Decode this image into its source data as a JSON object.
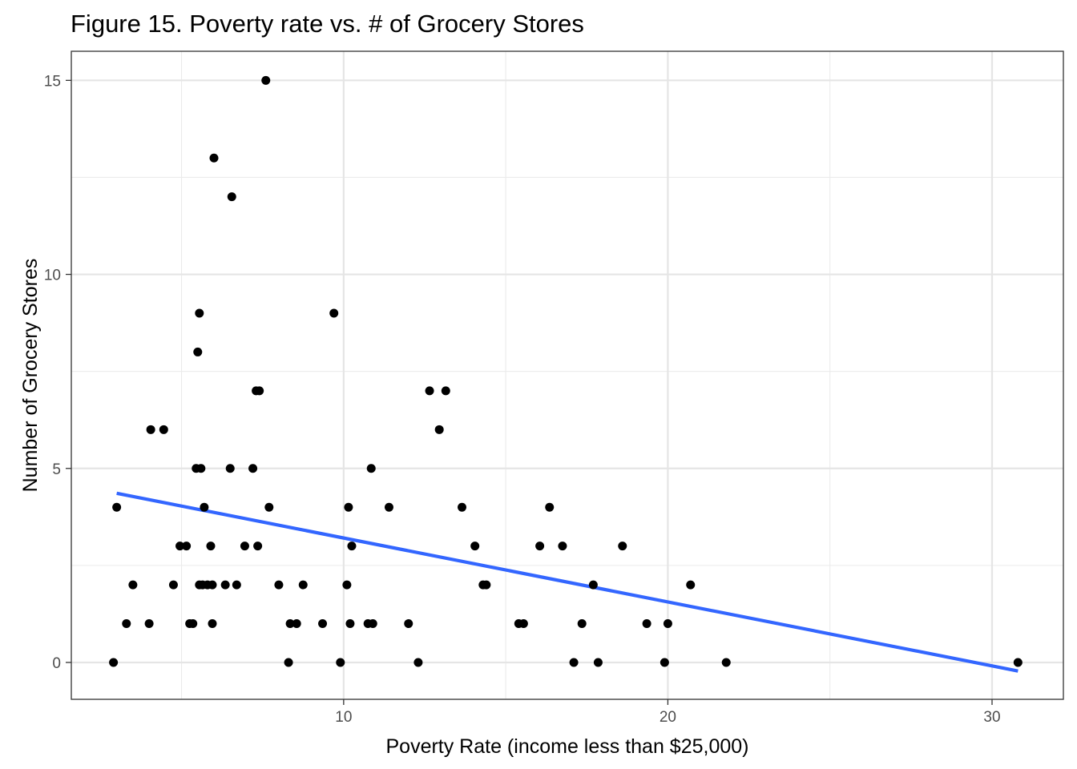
{
  "chart_data": {
    "type": "scatter",
    "title": "Figure 15. Poverty rate vs. # of Grocery Stores",
    "xlabel": "Poverty Rate (income less than $25,000)",
    "ylabel": "Number of Grocery Stores",
    "xlim": [
      1.6,
      32.2
    ],
    "ylim": [
      -0.95,
      15.75
    ],
    "x_major_ticks": [
      10,
      20,
      30
    ],
    "x_minor_ticks": [
      5,
      15,
      25
    ],
    "y_major_ticks": [
      0,
      5,
      10,
      15
    ],
    "y_minor_ticks": [
      2.5,
      7.5,
      12.5
    ],
    "x_tick_labels": [
      "10",
      "20",
      "30"
    ],
    "y_tick_labels": [
      "0",
      "5",
      "10",
      "15"
    ],
    "grid": true,
    "trend_line": {
      "color": "#3366FF",
      "x": [
        3.0,
        30.8
      ],
      "y": [
        4.36,
        -0.22
      ]
    },
    "point_color": "#000000",
    "points": [
      {
        "x": 2.9,
        "y": 0
      },
      {
        "x": 3.0,
        "y": 4
      },
      {
        "x": 3.3,
        "y": 1
      },
      {
        "x": 3.5,
        "y": 2
      },
      {
        "x": 4.0,
        "y": 1
      },
      {
        "x": 4.05,
        "y": 6
      },
      {
        "x": 4.45,
        "y": 6
      },
      {
        "x": 4.75,
        "y": 2
      },
      {
        "x": 4.95,
        "y": 3
      },
      {
        "x": 5.15,
        "y": 3
      },
      {
        "x": 5.25,
        "y": 1
      },
      {
        "x": 5.35,
        "y": 1
      },
      {
        "x": 5.45,
        "y": 5
      },
      {
        "x": 5.55,
        "y": 2
      },
      {
        "x": 5.6,
        "y": 5
      },
      {
        "x": 5.5,
        "y": 8
      },
      {
        "x": 5.55,
        "y": 9
      },
      {
        "x": 5.65,
        "y": 2
      },
      {
        "x": 5.7,
        "y": 4
      },
      {
        "x": 5.8,
        "y": 2
      },
      {
        "x": 5.9,
        "y": 3
      },
      {
        "x": 5.95,
        "y": 1
      },
      {
        "x": 5.95,
        "y": 2
      },
      {
        "x": 6.0,
        "y": 13
      },
      {
        "x": 6.35,
        "y": 2
      },
      {
        "x": 6.5,
        "y": 5
      },
      {
        "x": 6.55,
        "y": 12
      },
      {
        "x": 6.7,
        "y": 2
      },
      {
        "x": 6.95,
        "y": 3
      },
      {
        "x": 7.2,
        "y": 5
      },
      {
        "x": 7.3,
        "y": 7
      },
      {
        "x": 7.35,
        "y": 3
      },
      {
        "x": 7.4,
        "y": 7
      },
      {
        "x": 7.6,
        "y": 15
      },
      {
        "x": 7.7,
        "y": 4
      },
      {
        "x": 8.0,
        "y": 2
      },
      {
        "x": 8.3,
        "y": 0
      },
      {
        "x": 8.35,
        "y": 1
      },
      {
        "x": 8.55,
        "y": 1
      },
      {
        "x": 8.75,
        "y": 2
      },
      {
        "x": 9.35,
        "y": 1
      },
      {
        "x": 9.7,
        "y": 9
      },
      {
        "x": 9.9,
        "y": 0
      },
      {
        "x": 10.1,
        "y": 2
      },
      {
        "x": 10.15,
        "y": 4
      },
      {
        "x": 10.2,
        "y": 1
      },
      {
        "x": 10.25,
        "y": 3
      },
      {
        "x": 10.75,
        "y": 1
      },
      {
        "x": 10.85,
        "y": 5
      },
      {
        "x": 10.9,
        "y": 1
      },
      {
        "x": 11.4,
        "y": 4
      },
      {
        "x": 12.0,
        "y": 1
      },
      {
        "x": 12.3,
        "y": 0
      },
      {
        "x": 12.65,
        "y": 7
      },
      {
        "x": 12.95,
        "y": 6
      },
      {
        "x": 13.15,
        "y": 7
      },
      {
        "x": 13.65,
        "y": 4
      },
      {
        "x": 14.05,
        "y": 3
      },
      {
        "x": 14.3,
        "y": 2
      },
      {
        "x": 14.4,
        "y": 2
      },
      {
        "x": 15.4,
        "y": 1
      },
      {
        "x": 15.55,
        "y": 1
      },
      {
        "x": 16.05,
        "y": 3
      },
      {
        "x": 16.35,
        "y": 4
      },
      {
        "x": 16.75,
        "y": 3
      },
      {
        "x": 17.1,
        "y": 0
      },
      {
        "x": 17.35,
        "y": 1
      },
      {
        "x": 17.7,
        "y": 2
      },
      {
        "x": 17.85,
        "y": 0
      },
      {
        "x": 18.6,
        "y": 3
      },
      {
        "x": 19.35,
        "y": 1
      },
      {
        "x": 19.9,
        "y": 0
      },
      {
        "x": 20.0,
        "y": 1
      },
      {
        "x": 20.7,
        "y": 2
      },
      {
        "x": 21.8,
        "y": 0
      },
      {
        "x": 30.8,
        "y": 0
      }
    ]
  }
}
